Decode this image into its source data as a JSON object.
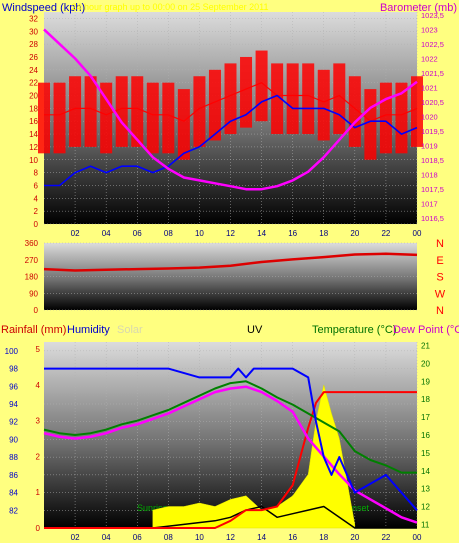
{
  "chart_data": [
    {
      "type": "line",
      "title": "24 hour graph up to 00:00 on 25 September 2011",
      "ylabel": "Windspeed (kph)",
      "y2label": "Barometer (mb)",
      "x_ticks": [
        "02",
        "04",
        "06",
        "08",
        "10",
        "12",
        "14",
        "16",
        "18",
        "20",
        "22",
        "00"
      ],
      "ylim": [
        0,
        33
      ],
      "y_ticks": [
        0,
        2,
        4,
        6,
        8,
        10,
        12,
        14,
        16,
        18,
        20,
        22,
        24,
        26,
        28,
        30,
        32
      ],
      "y2lim": [
        1016.3,
        1023.6
      ],
      "y2_ticks": [
        "1016,5",
        "1017",
        "1017,5",
        "1018",
        "1018,5",
        "1019",
        "1019,5",
        "1020",
        "1020,5",
        "1021",
        "1021,5",
        "1022",
        "1022,5",
        "1023",
        "1023,5"
      ],
      "series": [
        {
          "name": "Windspeed (gust)",
          "color": "#ff0000",
          "x": [
            0,
            1,
            2,
            3,
            4,
            5,
            6,
            7,
            8,
            9,
            10,
            11,
            12,
            13,
            14,
            15,
            16,
            17,
            18,
            19,
            20,
            21,
            22,
            23,
            24
          ],
          "values": [
            17,
            17,
            18,
            18,
            17,
            18,
            18,
            17,
            17,
            16,
            18,
            19,
            20,
            21,
            22,
            20,
            20,
            20,
            19,
            20,
            18,
            16,
            17,
            17,
            18
          ]
        },
        {
          "name": "Windspeed (average)",
          "color": "#0000ff",
          "x": [
            0,
            1,
            2,
            3,
            4,
            5,
            6,
            7,
            8,
            9,
            10,
            11,
            12,
            13,
            14,
            15,
            16,
            17,
            18,
            19,
            20,
            21,
            22,
            23,
            24
          ],
          "values": [
            6,
            6,
            8,
            9,
            8,
            9,
            9,
            8,
            9,
            11,
            12,
            14,
            16,
            17,
            19,
            20,
            18,
            18,
            18,
            17,
            15,
            16,
            16,
            14,
            15
          ]
        },
        {
          "name": "Barometer",
          "color": "#ff00ff",
          "x": [
            0,
            1,
            2,
            3,
            4,
            5,
            6,
            7,
            8,
            9,
            10,
            11,
            12,
            13,
            14,
            15,
            16,
            17,
            18,
            19,
            20,
            21,
            22,
            23,
            24
          ],
          "values": [
            1023.0,
            1022.5,
            1022.0,
            1021.4,
            1020.6,
            1019.8,
            1019.2,
            1018.6,
            1018.2,
            1017.9,
            1017.8,
            1017.7,
            1017.6,
            1017.5,
            1017.5,
            1017.6,
            1017.8,
            1018.1,
            1018.6,
            1019.2,
            1019.8,
            1020.3,
            1020.6,
            1020.8,
            1021.2
          ]
        }
      ]
    },
    {
      "type": "line",
      "ylabel": "",
      "ylim": [
        0,
        360
      ],
      "y_ticks": [
        0,
        90,
        180,
        270,
        360
      ],
      "compass": [
        "N",
        "W",
        "S",
        "E",
        "N"
      ],
      "series": [
        {
          "name": "Wind direction",
          "color": "#dd0000",
          "x": [
            0,
            2,
            4,
            6,
            8,
            10,
            12,
            14,
            16,
            18,
            20,
            22,
            24
          ],
          "values": [
            220,
            212,
            216,
            220,
            223,
            228,
            238,
            258,
            272,
            284,
            298,
            302,
            296
          ]
        }
      ]
    },
    {
      "type": "line",
      "labels": [
        "Rainfall (mm)",
        "Humidity",
        "Solar",
        "UV",
        "Temperature (°C)",
        "Dew Point (°C)"
      ],
      "x_ticks": [
        "02",
        "04",
        "06",
        "08",
        "10",
        "12",
        "14",
        "16",
        "18",
        "20",
        "22",
        "00"
      ],
      "ylim": [
        80,
        101
      ],
      "y_ticks": [
        82,
        84,
        86,
        88,
        90,
        92,
        94,
        96,
        98,
        100
      ],
      "y2lim": [
        10.8,
        21.2
      ],
      "y2_ticks": [
        11,
        12,
        13,
        14,
        15,
        16,
        17,
        18,
        19,
        20,
        21
      ],
      "rain_ticks": [
        0,
        1,
        2,
        3,
        4,
        5
      ],
      "annotations": [
        "Sunrise",
        "Sunset"
      ],
      "series": [
        {
          "name": "Humidity",
          "color": "#0000ff",
          "x": [
            0,
            2,
            4,
            6,
            8,
            10,
            12,
            12.5,
            13,
            13.5,
            14,
            15,
            16,
            17,
            17.5,
            18,
            18.5,
            19,
            20,
            21,
            22,
            23,
            24
          ],
          "values": [
            98,
            98,
            98,
            98,
            98,
            97,
            97,
            98,
            97,
            98,
            98,
            98,
            98,
            97,
            92,
            88,
            86,
            88,
            84,
            85,
            86,
            84,
            82
          ]
        },
        {
          "name": "Temperature (°C)",
          "color": "#008000",
          "x": [
            0,
            1,
            2,
            3,
            4,
            5,
            6,
            7,
            8,
            9,
            10,
            11,
            12,
            13,
            14,
            15,
            16,
            17,
            18,
            19,
            20,
            21,
            22,
            23,
            24
          ],
          "values": [
            16.3,
            16.1,
            16.0,
            16.1,
            16.3,
            16.6,
            16.8,
            17.1,
            17.4,
            17.8,
            18.2,
            18.6,
            18.9,
            19.0,
            18.6,
            18.1,
            17.7,
            17.2,
            16.7,
            16.2,
            15.1,
            14.6,
            14.3,
            13.9,
            13.9
          ]
        },
        {
          "name": "Dew Point (°C)",
          "color": "#ff00ff",
          "x": [
            0,
            1,
            2,
            3,
            4,
            5,
            6,
            7,
            8,
            9,
            10,
            11,
            12,
            13,
            14,
            15,
            16,
            17,
            18,
            19,
            20,
            21,
            22,
            23,
            24
          ],
          "values": [
            16.1,
            15.9,
            15.8,
            15.9,
            16.1,
            16.4,
            16.6,
            16.9,
            17.2,
            17.6,
            18.0,
            18.4,
            18.6,
            18.7,
            18.4,
            17.9,
            17.3,
            15.8,
            14.8,
            13.8,
            12.9,
            12.4,
            11.9,
            11.4,
            11.1
          ]
        },
        {
          "name": "Rainfall (mm)",
          "color": "#ff0000",
          "x": [
            0,
            7,
            11,
            12,
            13,
            14,
            15,
            16,
            17,
            17.5,
            18,
            19,
            20,
            21,
            22,
            23,
            24
          ],
          "values": [
            0,
            0,
            0,
            0.2,
            0.5,
            0.5,
            0.6,
            1.2,
            2.8,
            3.5,
            3.8,
            3.8,
            3.8,
            3.8,
            3.8,
            3.8,
            3.8
          ]
        },
        {
          "name": "Solar",
          "color": "#ffff00",
          "x": [
            7,
            8,
            9,
            10,
            11,
            12,
            13,
            14,
            15,
            16,
            17,
            17.5,
            18,
            18.5,
            19,
            20
          ],
          "values": [
            0.5,
            0.6,
            0.6,
            0.7,
            0.6,
            0.8,
            0.9,
            0.5,
            0.6,
            0.9,
            1.5,
            3.0,
            4.0,
            3.2,
            2.5,
            0.1
          ]
        },
        {
          "name": "UV",
          "color": "#000000",
          "x": [
            0,
            7,
            9,
            11,
            12,
            13,
            14,
            15,
            16,
            17,
            18,
            19,
            20,
            24
          ],
          "values": [
            0,
            0,
            0.1,
            0.2,
            0.3,
            0.5,
            0.6,
            0.3,
            0.4,
            0.5,
            0.6,
            0.3,
            0,
            0
          ]
        }
      ]
    }
  ]
}
